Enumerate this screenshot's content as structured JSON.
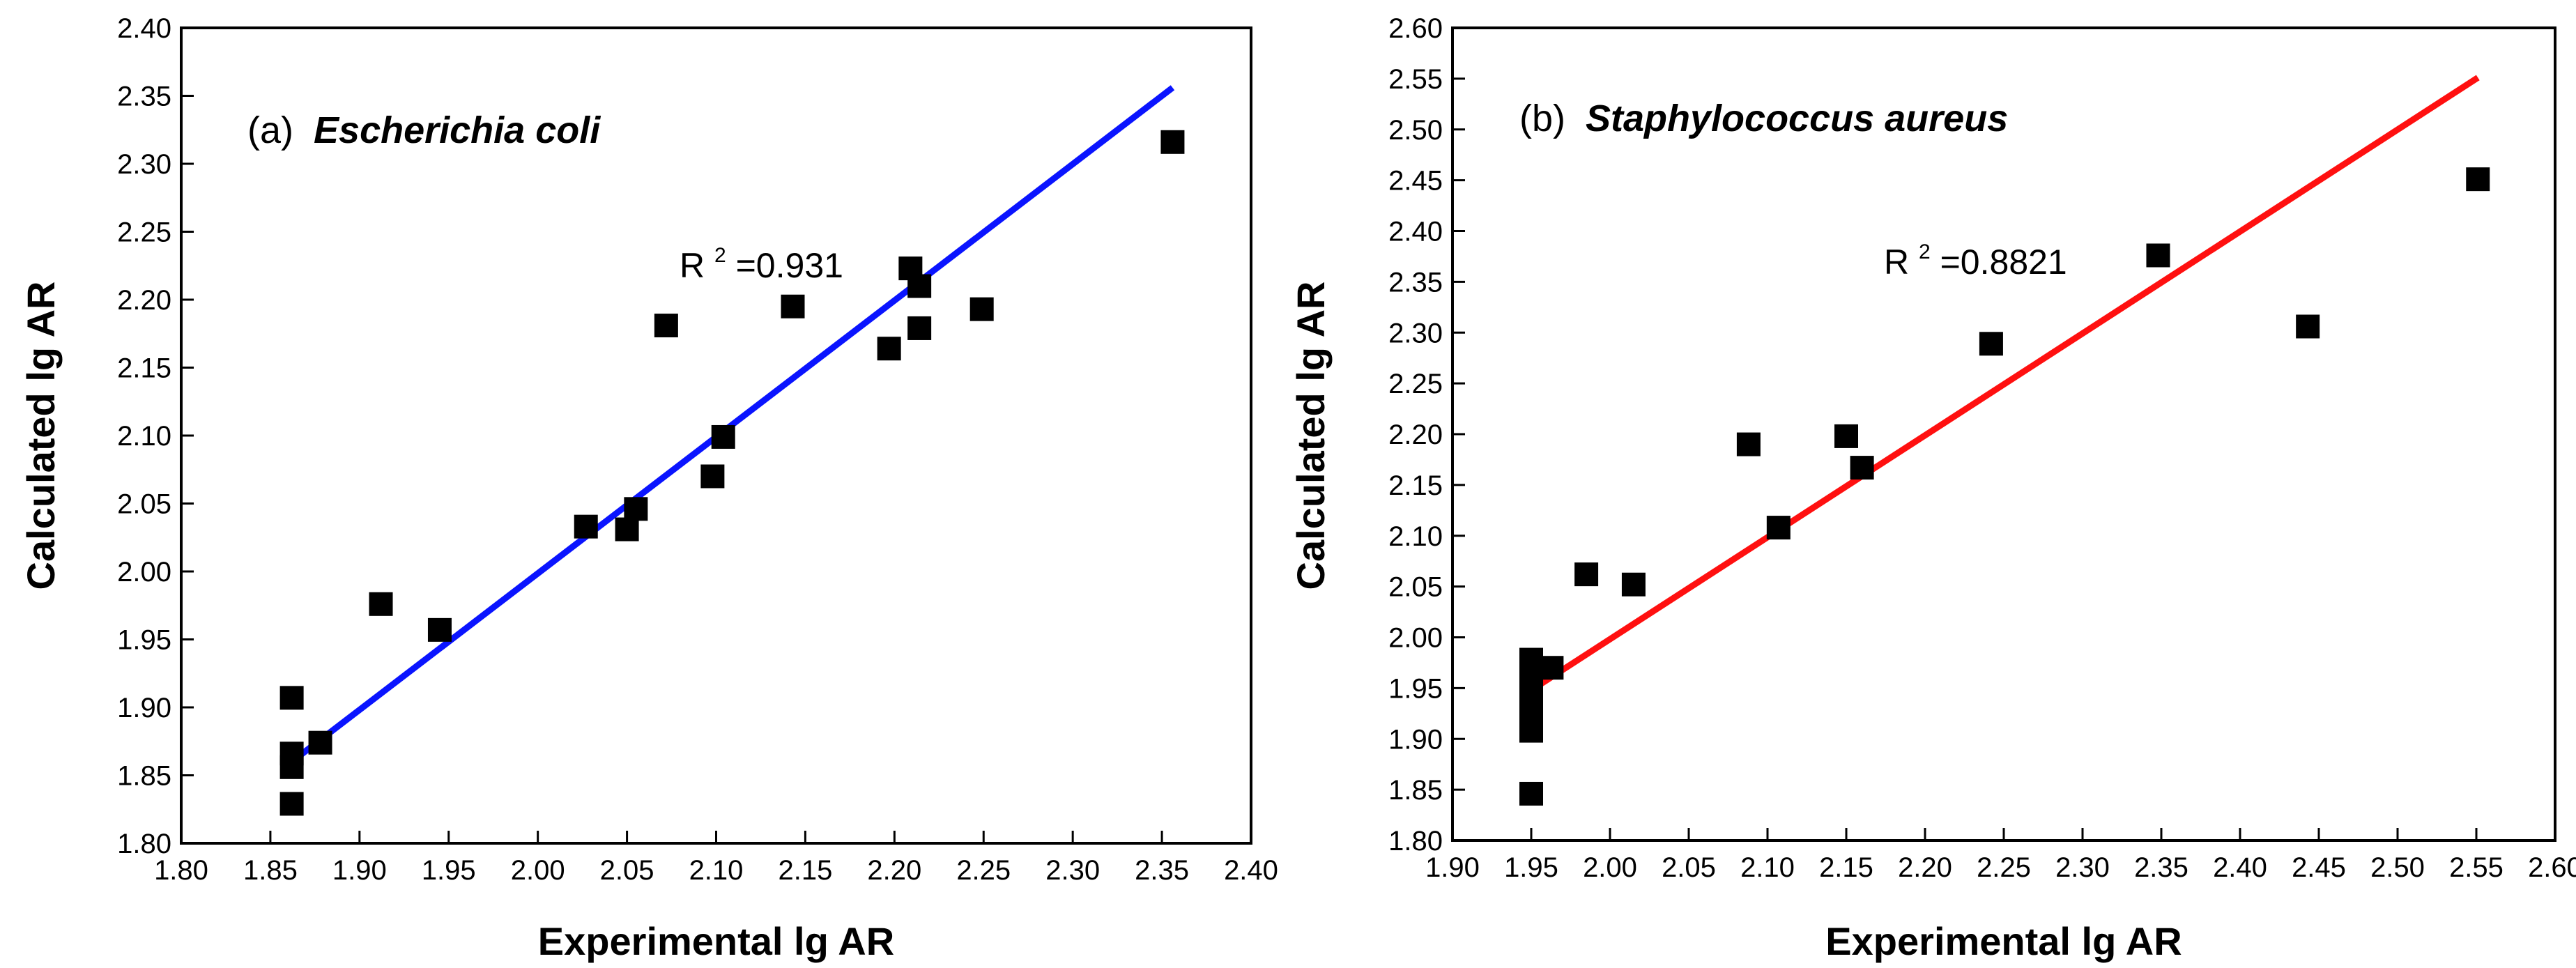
{
  "chart_data": [
    {
      "type": "scatter",
      "panel": "(a)",
      "species": "Escherichia coli",
      "xlabel": "Experimental lg AR",
      "ylabel": "Calculated lg AR",
      "xlim": [
        1.8,
        2.4
      ],
      "ylim": [
        1.8,
        2.4
      ],
      "xticks": [
        1.8,
        1.85,
        1.9,
        1.95,
        2.0,
        2.05,
        2.1,
        2.15,
        2.2,
        2.25,
        2.3,
        2.35,
        2.4
      ],
      "yticks": [
        1.8,
        1.85,
        1.9,
        1.95,
        2.0,
        2.05,
        2.1,
        2.15,
        2.2,
        2.25,
        2.3,
        2.35,
        2.4
      ],
      "r2_prefix": "R",
      "r2_sup": "2",
      "r2_value": "=0.931",
      "fit_color": "#0a14ff",
      "fit_line": {
        "x": [
          1.862,
          2.356
        ],
        "y": [
          1.86,
          2.356
        ]
      },
      "points": [
        [
          1.862,
          1.907
        ],
        [
          1.862,
          1.866
        ],
        [
          1.862,
          1.856
        ],
        [
          1.862,
          1.829
        ],
        [
          1.878,
          1.874
        ],
        [
          1.912,
          1.976
        ],
        [
          1.945,
          1.957
        ],
        [
          2.027,
          2.033
        ],
        [
          2.05,
          2.031
        ],
        [
          2.055,
          2.046
        ],
        [
          2.072,
          2.181
        ],
        [
          2.098,
          2.07
        ],
        [
          2.104,
          2.099
        ],
        [
          2.143,
          2.195
        ],
        [
          2.197,
          2.164
        ],
        [
          2.209,
          2.223
        ],
        [
          2.214,
          2.21
        ],
        [
          2.214,
          2.179
        ],
        [
          2.249,
          2.193
        ],
        [
          2.356,
          2.316
        ]
      ]
    },
    {
      "type": "scatter",
      "panel": "(b)",
      "species": "Staphylococcus aureus",
      "xlabel": "Experimental lg AR",
      "ylabel": "Calculated lg AR",
      "xlim": [
        1.9,
        2.6
      ],
      "ylim": [
        1.8,
        2.6
      ],
      "xticks": [
        1.9,
        1.95,
        2.0,
        2.05,
        2.1,
        2.15,
        2.2,
        2.25,
        2.3,
        2.35,
        2.4,
        2.45,
        2.5,
        2.55,
        2.6
      ],
      "yticks": [
        1.8,
        1.85,
        1.9,
        1.95,
        2.0,
        2.05,
        2.1,
        2.15,
        2.2,
        2.25,
        2.3,
        2.35,
        2.4,
        2.45,
        2.5,
        2.55,
        2.6
      ],
      "r2_prefix": "R",
      "r2_sup": "2",
      "r2_value": "=0.8821",
      "fit_color": "#ff1010",
      "fit_line": {
        "x": [
          1.95,
          2.551
        ],
        "y": [
          1.948,
          2.551
        ]
      },
      "points": [
        [
          1.95,
          1.978
        ],
        [
          1.95,
          1.96
        ],
        [
          1.95,
          1.95
        ],
        [
          1.95,
          1.94
        ],
        [
          1.95,
          1.928
        ],
        [
          1.95,
          1.918
        ],
        [
          1.95,
          1.908
        ],
        [
          1.95,
          1.846
        ],
        [
          1.963,
          1.97
        ],
        [
          1.985,
          2.062
        ],
        [
          2.015,
          2.052
        ],
        [
          2.088,
          2.19
        ],
        [
          2.107,
          2.108
        ],
        [
          2.15,
          2.198
        ],
        [
          2.16,
          2.167
        ],
        [
          2.242,
          2.289
        ],
        [
          2.348,
          2.376
        ],
        [
          2.443,
          2.306
        ],
        [
          2.551,
          2.451
        ]
      ]
    }
  ]
}
